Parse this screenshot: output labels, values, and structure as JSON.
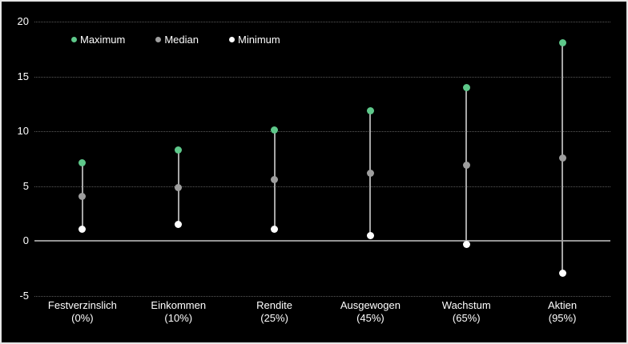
{
  "colors": {
    "background": "#000000",
    "frame": "#e6e6e6",
    "text": "#ffffff",
    "gridline": "#5a5a5a",
    "zero_line": "#949494",
    "stem": "#a6a6a6",
    "maximum": "#5ec88a",
    "median": "#9e9e9e",
    "minimum": "#ffffff"
  },
  "legend": {
    "items": [
      {
        "label": "Maximum",
        "color_key": "maximum"
      },
      {
        "label": "Median",
        "color_key": "median"
      },
      {
        "label": "Minimum",
        "color_key": "minimum"
      }
    ]
  },
  "y_axis": {
    "tick_labels": [
      "20",
      "15",
      "10",
      "5",
      "0",
      "-5"
    ],
    "tick_values": [
      20,
      15,
      10,
      5,
      0,
      -5
    ]
  },
  "chart_data": {
    "type": "scatter",
    "subtype": "high-median-low range dot plot",
    "title": "",
    "xlabel": "",
    "ylabel": "",
    "ylim": [
      -5,
      20
    ],
    "y_step": 5,
    "grid": true,
    "legend_position": "top-left",
    "categories": [
      {
        "label": "Festverzinslich",
        "sublabel": "(0%)"
      },
      {
        "label": "Einkommen",
        "sublabel": "(10%)"
      },
      {
        "label": "Rendite",
        "sublabel": "(25%)"
      },
      {
        "label": "Ausgewogen",
        "sublabel": "(45%)"
      },
      {
        "label": "Wachstum",
        "sublabel": "(65%)"
      },
      {
        "label": "Aktien",
        "sublabel": "(95%)"
      }
    ],
    "series": [
      {
        "name": "Maximum",
        "color_key": "maximum",
        "values": [
          7.1,
          8.3,
          10.1,
          11.9,
          14.0,
          18.1
        ]
      },
      {
        "name": "Median",
        "color_key": "median",
        "values": [
          4.1,
          4.9,
          5.6,
          6.2,
          6.9,
          7.6
        ]
      },
      {
        "name": "Minimum",
        "color_key": "minimum",
        "values": [
          1.1,
          1.5,
          1.1,
          0.5,
          -0.3,
          -2.9
        ]
      }
    ]
  }
}
